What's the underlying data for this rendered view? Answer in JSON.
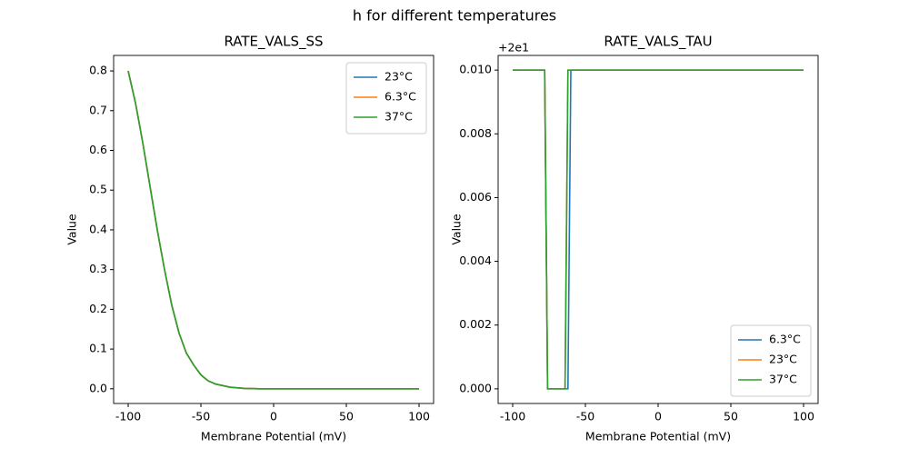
{
  "title": "h for different temperatures",
  "chart_data": [
    {
      "type": "line",
      "title": "RATE_VALS_SS",
      "xlabel": "Membrane Potential (mV)",
      "ylabel": "Value",
      "x": [
        -100,
        -95,
        -90,
        -85,
        -80,
        -75,
        -70,
        -65,
        -60,
        -55,
        -50,
        -45,
        -40,
        -30,
        -20,
        -10,
        0,
        25,
        50,
        75,
        100
      ],
      "series": [
        {
          "name": "23°C",
          "color": "#1f77b4",
          "values": [
            0.8,
            0.72,
            0.62,
            0.51,
            0.4,
            0.3,
            0.21,
            0.14,
            0.09,
            0.06,
            0.035,
            0.02,
            0.012,
            0.004,
            0.001,
            0,
            0,
            0,
            0,
            0,
            0
          ]
        },
        {
          "name": "6.3°C",
          "color": "#ff7f0e",
          "values": [
            0.8,
            0.72,
            0.62,
            0.51,
            0.4,
            0.3,
            0.21,
            0.14,
            0.09,
            0.06,
            0.035,
            0.02,
            0.012,
            0.004,
            0.001,
            0,
            0,
            0,
            0,
            0,
            0
          ]
        },
        {
          "name": "37°C",
          "color": "#2ca02c",
          "values": [
            0.8,
            0.72,
            0.62,
            0.51,
            0.4,
            0.3,
            0.21,
            0.14,
            0.09,
            0.06,
            0.035,
            0.02,
            0.012,
            0.004,
            0.001,
            0,
            0,
            0,
            0,
            0,
            0
          ]
        }
      ],
      "xlim": [
        -110,
        110
      ],
      "xticks": [
        -100,
        -50,
        0,
        50,
        100
      ],
      "ylim": [
        -0.037,
        0.839
      ],
      "yticks": [
        {
          "value": 0,
          "label": "0.0"
        },
        0.1,
        0.2,
        0.3,
        0.4,
        0.5,
        0.6,
        0.7,
        0.8
      ],
      "legend": "upper right"
    },
    {
      "type": "line",
      "title": "RATE_VALS_TAU",
      "xlabel": "Membrane Potential (mV)",
      "ylabel": "Value",
      "offset_label": "+2e1",
      "x": [
        -100,
        -78,
        -76,
        -64,
        -62,
        -60,
        100
      ],
      "series": [
        {
          "name": "6.3°C",
          "color": "#1f77b4",
          "values": [
            0.01,
            0.01,
            0,
            0,
            0,
            0.01,
            0.01
          ]
        },
        {
          "name": "23°C",
          "color": "#ff7f0e",
          "values": [
            0.01,
            0.01,
            0,
            0,
            0.01,
            0.01,
            0.01
          ]
        },
        {
          "name": "37°C",
          "color": "#2ca02c",
          "values": [
            0.01,
            0.01,
            0,
            0,
            0.01,
            0.01,
            0.01
          ]
        }
      ],
      "xlim": [
        -110,
        110
      ],
      "xticks": [
        -100,
        -50,
        0,
        50,
        100
      ],
      "ylim": [
        -0.00046,
        0.01046
      ],
      "yticks": [
        {
          "value": 0,
          "label": "0.000"
        },
        0.002,
        0.004,
        0.006,
        0.008,
        {
          "value": 0.01,
          "label": "0.010"
        }
      ],
      "legend": "lower right"
    }
  ]
}
